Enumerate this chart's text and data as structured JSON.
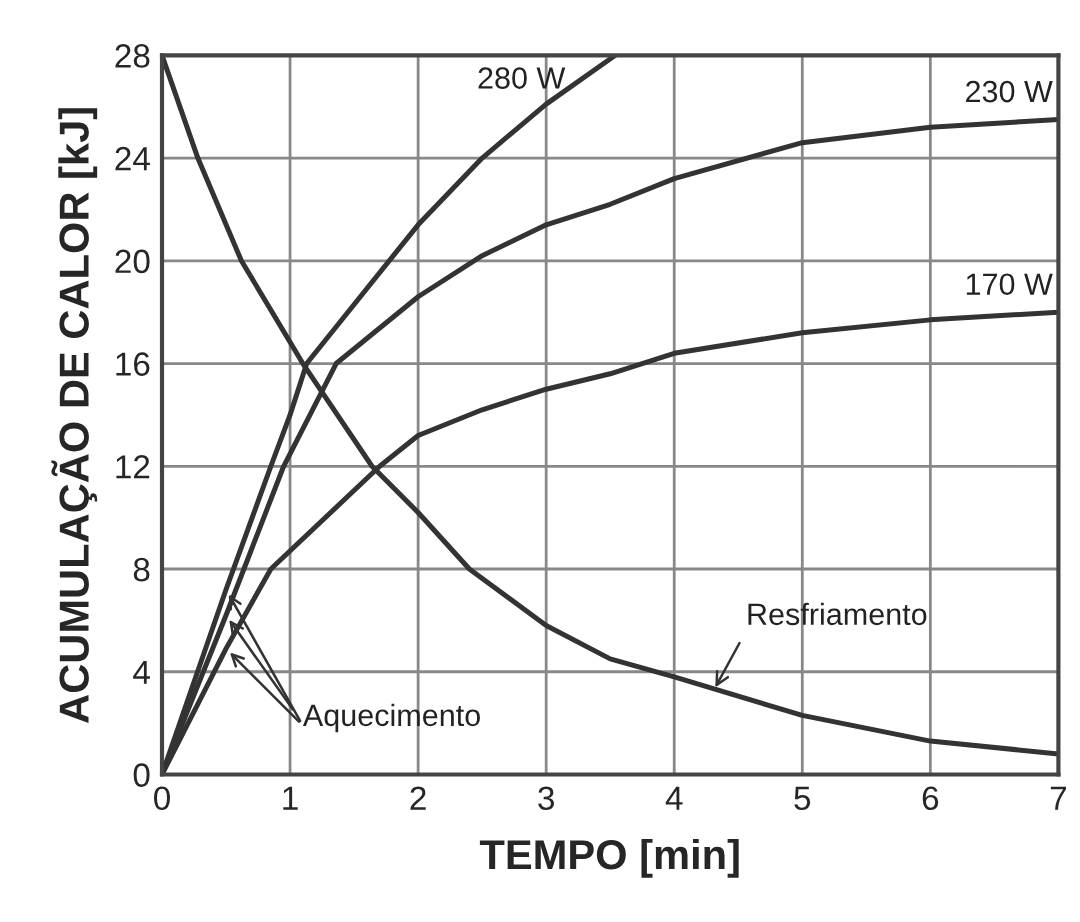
{
  "chart_data": {
    "type": "line",
    "xlabel": "TEMPO [min]",
    "ylabel": "ACUMULAÇÃO DE CALOR [kJ]",
    "xlim": [
      0,
      7
    ],
    "ylim": [
      0,
      28
    ],
    "xticks": [
      0,
      1,
      2,
      3,
      4,
      5,
      6,
      7
    ],
    "yticks": [
      0,
      4,
      8,
      12,
      16,
      20,
      24,
      28
    ],
    "grid": true,
    "legend": false,
    "marker": "none",
    "line_style": "solid",
    "series": [
      {
        "name": "280 W",
        "color": "#333333",
        "x": [
          0,
          0.5,
          0.85,
          1,
          1.13,
          1.5,
          2,
          2.5,
          3,
          3.54
        ],
        "values": [
          0,
          7.2,
          12,
          14,
          16,
          18.3,
          21.4,
          24,
          26.1,
          28
        ]
      },
      {
        "name": "230 W",
        "color": "#333333",
        "x": [
          0,
          0.5,
          0.95,
          1.36,
          2,
          2.5,
          3,
          3.5,
          4,
          5,
          6,
          7
        ],
        "values": [
          0,
          6.2,
          12,
          16,
          18.6,
          20.2,
          21.4,
          22.2,
          23.2,
          24.6,
          25.2,
          25.5
        ]
      },
      {
        "name": "170 W",
        "color": "#333333",
        "x": [
          0,
          0.5,
          0.85,
          1.7,
          2,
          2.5,
          3,
          3.5,
          4,
          5,
          6,
          7
        ],
        "values": [
          0,
          4.9,
          8,
          12,
          13.2,
          14.2,
          15,
          15.6,
          16.4,
          17.2,
          17.7,
          18
        ]
      },
      {
        "color": "#333333",
        "x": [
          0,
          0.28,
          0.62,
          1.1,
          1.64,
          2,
          2.4,
          3,
          3.5,
          4,
          5,
          6,
          7
        ],
        "values": [
          28,
          24,
          20,
          16,
          12,
          10.2,
          8,
          5.8,
          4.5,
          3.8,
          2.3,
          1.3,
          0.8
        ]
      }
    ],
    "annotations": [
      {
        "text": "Aquecimento",
        "x": 0.5,
        "y": 6.2
      },
      {
        "text": "Resfriamento",
        "x": 4.3,
        "y": 3.2
      }
    ]
  }
}
